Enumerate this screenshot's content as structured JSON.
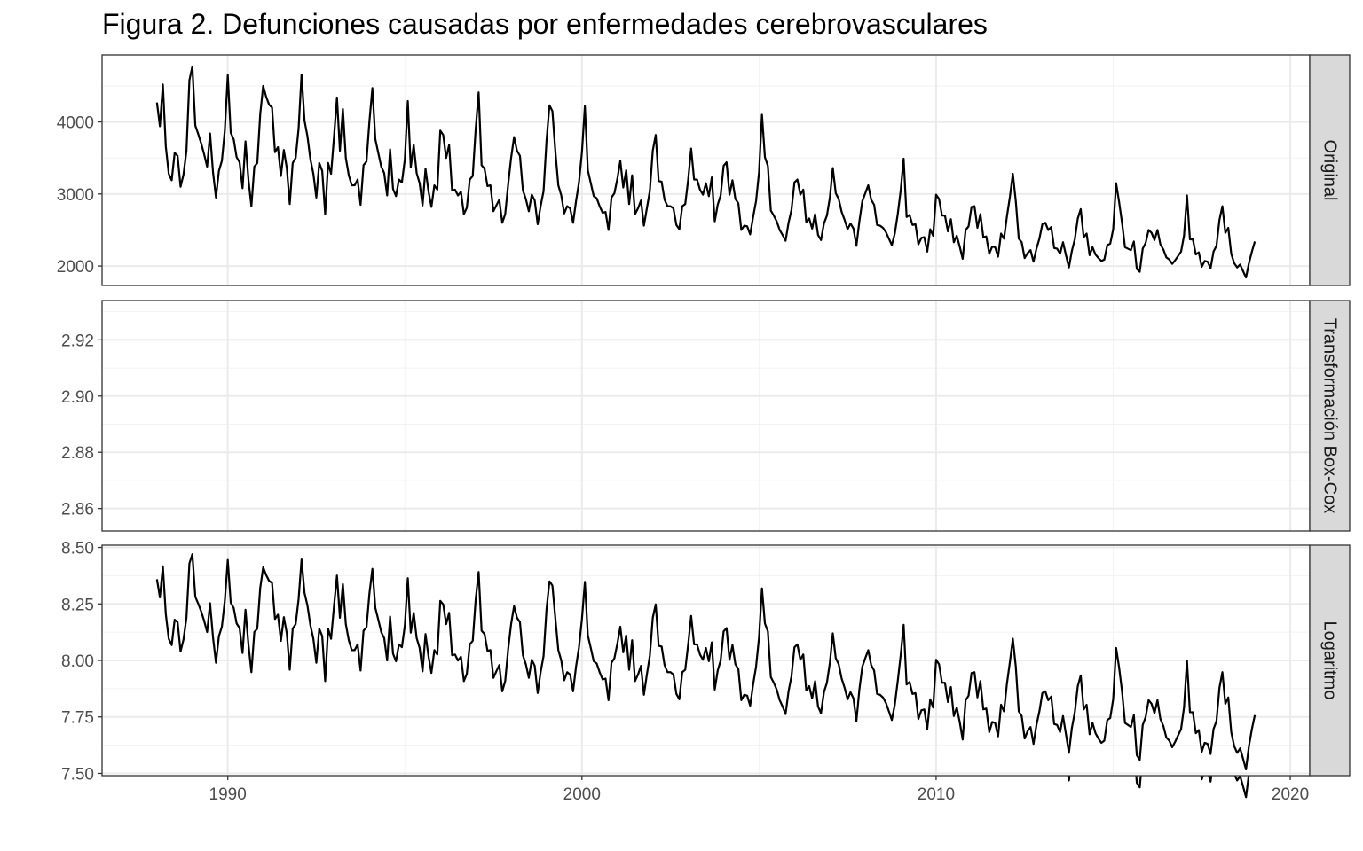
{
  "chart_data": {
    "type": "line",
    "title": "Figura 2. Defunciones causadas por enfermedades cerebrovasculares",
    "xlabel": "",
    "ylabel": "",
    "grid": true,
    "x": {
      "start": 1988.0,
      "frequency": "monthly",
      "range": [
        1986.45,
        2020.55
      ],
      "ticks": [
        1990,
        2000,
        2010,
        2020
      ],
      "tick_labels": [
        "1990",
        "2000",
        "2010",
        "2020"
      ]
    },
    "monthly_values": [
      4270,
      3940,
      4520,
      3660,
      3280,
      3190,
      3570,
      3530,
      3100,
      3270,
      3600,
      4580,
      4770,
      3950,
      3830,
      3700,
      3550,
      3380,
      3840,
      3300,
      2950,
      3320,
      3460,
      3880,
      4650,
      3850,
      3760,
      3510,
      3440,
      3080,
      3730,
      3200,
      2830,
      3380,
      3430,
      4110,
      4500,
      4350,
      4240,
      4200,
      3580,
      3650,
      3250,
      3610,
      3360,
      2860,
      3430,
      3500,
      3910,
      4660,
      4020,
      3800,
      3480,
      3280,
      2950,
      3430,
      3320,
      2720,
      3430,
      3280,
      3790,
      4340,
      3600,
      4180,
      3500,
      3260,
      3120,
      3120,
      3200,
      2850,
      3400,
      3450,
      4010,
      4470,
      3760,
      3570,
      3380,
      3290,
      2980,
      3620,
      3070,
      2970,
      3200,
      3160,
      3480,
      4290,
      3370,
      3680,
      3290,
      3150,
      2840,
      3350,
      3040,
      2820,
      3120,
      3060,
      3880,
      3820,
      3500,
      3680,
      3050,
      3060,
      2980,
      3030,
      2720,
      2810,
      3200,
      3250,
      3900,
      4410,
      3400,
      3350,
      3110,
      3120,
      2760,
      2840,
      2920,
      2600,
      2720,
      3130,
      3500,
      3790,
      3600,
      3530,
      3050,
      2930,
      2760,
      2990,
      2910,
      2580,
      2830,
      3040,
      3740,
      4230,
      4150,
      3590,
      3120,
      2980,
      2730,
      2830,
      2800,
      2600,
      2900,
      3160,
      3580,
      4220,
      3330,
      3150,
      2970,
      2940,
      2830,
      2740,
      2750,
      2500,
      2950,
      3010,
      3210,
      3460,
      3090,
      3330,
      2860,
      3260,
      2720,
      2800,
      2910,
      2560,
      2800,
      3040,
      3600,
      3820,
      3180,
      3170,
      2920,
      2830,
      2830,
      2800,
      2570,
      2510,
      2830,
      2860,
      3200,
      3630,
      3200,
      3200,
      3060,
      2990,
      3150,
      2970,
      3230,
      2620,
      2850,
      2980,
      3390,
      3440,
      2990,
      3190,
      2930,
      2870,
      2500,
      2560,
      2550,
      2440,
      2680,
      2900,
      3300,
      4100,
      3510,
      3390,
      2770,
      2700,
      2620,
      2500,
      2430,
      2350,
      2600,
      2780,
      3160,
      3200,
      2990,
      3060,
      2610,
      2660,
      2520,
      2720,
      2430,
      2360,
      2590,
      2700,
      2950,
      3360,
      3010,
      2930,
      2750,
      2640,
      2510,
      2590,
      2520,
      2280,
      2620,
      2900,
      3010,
      3120,
      2920,
      2850,
      2570,
      2560,
      2530,
      2470,
      2380,
      2290,
      2450,
      2720,
      3050,
      3490,
      2680,
      2710,
      2570,
      2580,
      2300,
      2390,
      2400,
      2200,
      2510,
      2420,
      2990,
      2930,
      2700,
      2700,
      2480,
      2650,
      2330,
      2420,
      2270,
      2100,
      2500,
      2550,
      2820,
      2830,
      2530,
      2720,
      2400,
      2410,
      2170,
      2270,
      2260,
      2130,
      2450,
      2380,
      2690,
      2960,
      3280,
      2900,
      2380,
      2330,
      2110,
      2180,
      2220,
      2060,
      2240,
      2380,
      2580,
      2600,
      2500,
      2540,
      2250,
      2240,
      2170,
      2330,
      2150,
      1980,
      2210,
      2370,
      2660,
      2790,
      2400,
      2450,
      2150,
      2260,
      2160,
      2110,
      2070,
      2090,
      2290,
      2310,
      2510,
      3150,
      2890,
      2600,
      2260,
      2240,
      2220,
      2340,
      1960,
      1920,
      2240,
      2320,
      2500,
      2460,
      2360,
      2500,
      2300,
      2230,
      2120,
      2090,
      2030,
      2080,
      2140,
      2200,
      2420,
      2980,
      2370,
      2370,
      2160,
      2190,
      1990,
      2070,
      2060,
      1970,
      2200,
      2280,
      2640,
      2830,
      2460,
      2530,
      2170,
      2040,
      1980,
      2020,
      1930,
      1840,
      2040,
      2200,
      2340
    ],
    "series": [
      {
        "name": "Original",
        "transform": "identity",
        "yticks": [
          2000,
          3000,
          4000
        ],
        "ytick_labels": [
          "2000",
          "3000",
          "4000"
        ],
        "ylim": [
          1730,
          4930
        ]
      },
      {
        "name": "Transformación Box-Cox",
        "transform": "boxcox",
        "lambda": -0.333,
        "yticks": [
          2.86,
          2.88,
          2.9,
          2.92
        ],
        "ytick_labels": [
          "2.86",
          "2.88",
          "2.90",
          "2.92"
        ],
        "ylim": [
          2.852,
          2.934
        ]
      },
      {
        "name": "Logaritmo",
        "transform": "log",
        "yticks": [
          7.5,
          7.75,
          8.0,
          8.25,
          8.5
        ],
        "ytick_labels": [
          "7.50",
          "7.75",
          "8.00",
          "8.25",
          "8.50"
        ],
        "ylim": [
          7.49,
          8.51
        ]
      }
    ]
  }
}
